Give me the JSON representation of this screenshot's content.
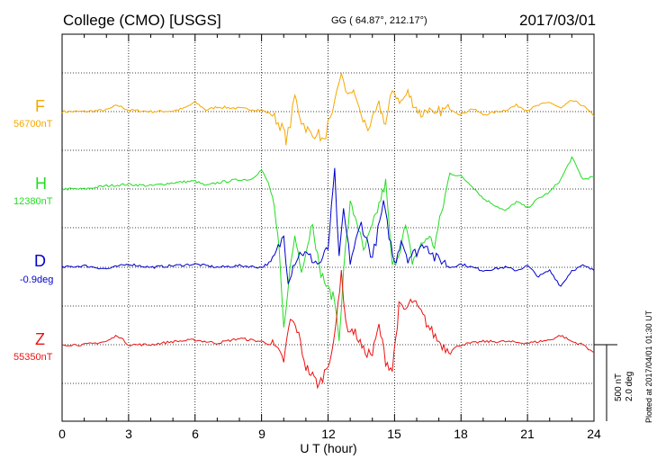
{
  "header": {
    "station": "College (CMO)  [USGS]",
    "coords": "GG ( 64.87°, 212.17°)",
    "date": "2017/03/01"
  },
  "chart_data": {
    "type": "line",
    "xlabel": "U T (hour)",
    "xlim": [
      0,
      24
    ],
    "xticks": [
      "0",
      "3",
      "6",
      "9",
      "12",
      "15",
      "18",
      "21",
      "24"
    ],
    "grid": "dotted",
    "scale_label": [
      "500 nT",
      "2.0 deg"
    ],
    "plotted_note": "Plotted at 2017/04/01 01:30 UT",
    "series": [
      {
        "name": "F",
        "baseline": "56700nT",
        "color": "#F5A800",
        "x": [
          0,
          1,
          2,
          2.5,
          3,
          4,
          5,
          5.5,
          6,
          6.5,
          7,
          8,
          9,
          9.5,
          10,
          10.1,
          10.3,
          10.5,
          10.8,
          11,
          11.3,
          11.5,
          11.8,
          12,
          12.2,
          12.4,
          12.6,
          12.8,
          13,
          13.3,
          13.5,
          13.8,
          14,
          14.3,
          14.6,
          14.8,
          15,
          15.3,
          15.6,
          15.9,
          16.2,
          16.5,
          16.8,
          17,
          17.5,
          18,
          18.5,
          19,
          20,
          20.5,
          21,
          21.5,
          22,
          22.5,
          23,
          23.5,
          24
        ],
        "y": [
          0,
          0,
          0.05,
          0.2,
          0.05,
          0,
          0.02,
          0.1,
          0.3,
          0.05,
          0.15,
          0.1,
          0.05,
          -0.1,
          -0.6,
          -0.9,
          -0.4,
          0.5,
          -0.3,
          -0.5,
          -0.8,
          -0.6,
          -1.0,
          -0.4,
          -0.2,
          0.6,
          1.3,
          0.5,
          0.7,
          0.4,
          -0.2,
          -0.5,
          -0.3,
          0.2,
          -0.4,
          0.4,
          0.6,
          0.3,
          0.6,
          0.2,
          -0.1,
          0.1,
          -0.2,
          0,
          0.1,
          -0.1,
          0.1,
          -0.1,
          0.05,
          0.2,
          0.05,
          0.2,
          0.3,
          0.1,
          0.35,
          0.2,
          -0.15
        ]
      },
      {
        "name": "H",
        "baseline": "12380nT",
        "color": "#22DD22",
        "x": [
          0,
          1,
          2,
          3,
          4,
          5,
          6,
          6.5,
          7,
          8,
          8.5,
          9,
          9.3,
          9.5,
          9.8,
          10,
          10.2,
          10.5,
          10.8,
          11,
          11.3,
          11.6,
          12,
          12.3,
          12.5,
          12.7,
          13,
          13.3,
          13.6,
          14,
          14.3,
          14.6,
          14.9,
          15.2,
          15.5,
          15.8,
          16.2,
          16.5,
          16.8,
          17.2,
          17.5,
          18,
          18.5,
          19,
          19.5,
          20,
          20.5,
          21,
          21.5,
          22,
          22.5,
          23,
          23.5,
          24
        ],
        "y": [
          0,
          0,
          0.1,
          0.15,
          0.1,
          0.2,
          0.25,
          0.1,
          0.2,
          0.3,
          0.3,
          0.6,
          0.2,
          -0.3,
          -2.0,
          -4.5,
          -3.0,
          -1.5,
          -2.5,
          -2.0,
          -1.0,
          -2.5,
          -3.2,
          -3.5,
          -4.8,
          -2.5,
          -0.5,
          -1.0,
          -2.0,
          -1.2,
          -0.5,
          0.2,
          -2.5,
          -2.0,
          -1.2,
          -2.3,
          -1.8,
          -1.5,
          -1.8,
          -0.5,
          0.5,
          0.4,
          0.1,
          -0.3,
          -0.5,
          -0.7,
          -0.4,
          -0.6,
          -0.3,
          -0.1,
          0.3,
          1.0,
          0.3,
          0.4
        ]
      },
      {
        "name": "D",
        "baseline": "-0.9deg",
        "color": "#0000CC",
        "x": [
          0,
          1,
          2,
          3,
          4,
          5,
          6,
          7,
          8,
          9,
          9.5,
          10,
          10.2,
          10.5,
          10.8,
          11.2,
          11.6,
          12,
          12.3,
          12.5,
          12.7,
          13,
          13.5,
          14,
          14.5,
          15,
          15.3,
          15.6,
          16,
          16.4,
          16.8,
          17.2,
          17.5,
          18,
          19,
          20,
          20.5,
          21,
          21.5,
          22,
          22.5,
          23,
          23.5,
          24
        ],
        "y": [
          0,
          0.05,
          -0.05,
          0.1,
          0,
          0.05,
          0.1,
          0,
          0.05,
          0,
          0.2,
          1.0,
          -0.4,
          0.2,
          0.5,
          0.3,
          0.1,
          0.6,
          3.0,
          0.2,
          1.8,
          0.2,
          1.4,
          0.3,
          2.0,
          0.1,
          0.9,
          0.3,
          0.5,
          0.8,
          0.3,
          0.2,
          0,
          0.1,
          -0.1,
          0,
          -0.1,
          0.05,
          -0.3,
          -0.1,
          -0.6,
          -0.1,
          0.05,
          -0.1
        ]
      },
      {
        "name": "Z",
        "baseline": "55350nT",
        "color": "#EE1111",
        "x": [
          0,
          1,
          2,
          2.5,
          3,
          4,
          5,
          6,
          7,
          8,
          9,
          9.5,
          10,
          10.3,
          10.6,
          11,
          11.3,
          11.6,
          12,
          12.3,
          12.6,
          12.8,
          13,
          13.3,
          13.6,
          14,
          14.3,
          14.6,
          14.9,
          15.2,
          15.5,
          15.8,
          16.2,
          16.6,
          17,
          17.3,
          17.6,
          18,
          19,
          20,
          21,
          22,
          22.5,
          23,
          23.5,
          24
        ],
        "y": [
          0,
          0,
          0.1,
          0.3,
          0,
          0,
          0.1,
          0.15,
          0.05,
          0.2,
          0.1,
          0,
          -0.5,
          0.8,
          0.5,
          -0.7,
          -1.0,
          -1.3,
          -0.6,
          0.2,
          2.4,
          0.6,
          0.5,
          0.3,
          -0.2,
          -0.3,
          0.6,
          -0.5,
          -0.8,
          1.2,
          1.1,
          1.4,
          1.0,
          0.5,
          0.1,
          -0.1,
          -0.15,
          0,
          0.1,
          0.1,
          0.05,
          0.15,
          0.3,
          0.1,
          0,
          -0.25
        ]
      }
    ]
  }
}
